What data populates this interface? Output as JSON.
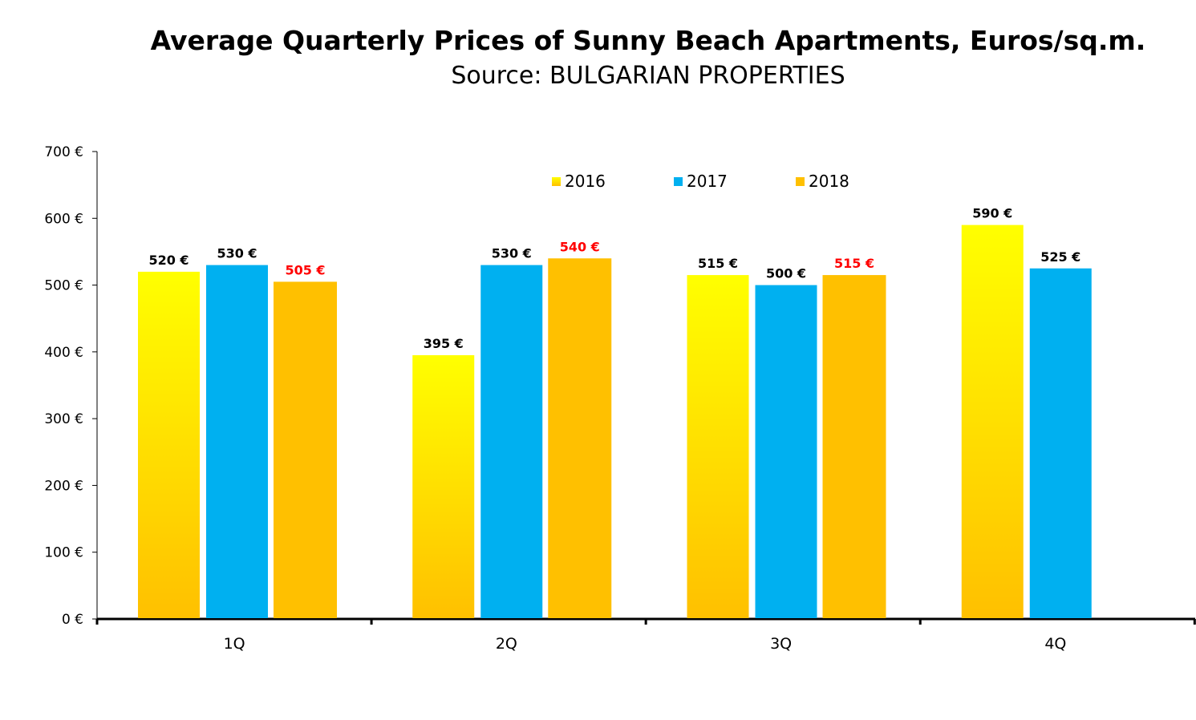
{
  "chart_data": {
    "type": "bar",
    "title": "Average Quarterly Prices of Sunny Beach Apartments, Euros/sq.m.",
    "subtitle": "Source: BULGARIAN PROPERTIES",
    "categories": [
      "1Q",
      "2Q",
      "3Q",
      "4Q"
    ],
    "series": [
      {
        "name": "2016",
        "values": [
          520,
          395,
          515,
          590
        ],
        "labels": [
          "520 €",
          "395 €",
          "515 €",
          "590 €"
        ],
        "color": "#FFC000",
        "gradient_top": "#FFFF00",
        "label_color": "#000000"
      },
      {
        "name": "2017",
        "values": [
          530,
          530,
          500,
          525
        ],
        "labels": [
          "530 €",
          "530 €",
          "500 €",
          "525 €"
        ],
        "color": "#00B0F0",
        "label_color": "#000000"
      },
      {
        "name": "2018",
        "values": [
          505,
          540,
          515,
          null
        ],
        "labels": [
          "505 €",
          "540 €",
          "515 €",
          null
        ],
        "color": "#FFC000",
        "label_color": "#FF0000"
      }
    ],
    "yticks": [
      "0 €",
      "100 €",
      "200 €",
      "300 €",
      "400 €",
      "500 €",
      "600 €",
      "700 €"
    ],
    "ylim": [
      0,
      700
    ],
    "xlabel": "",
    "ylabel": "",
    "grid": false,
    "legend_position": "top-center"
  }
}
